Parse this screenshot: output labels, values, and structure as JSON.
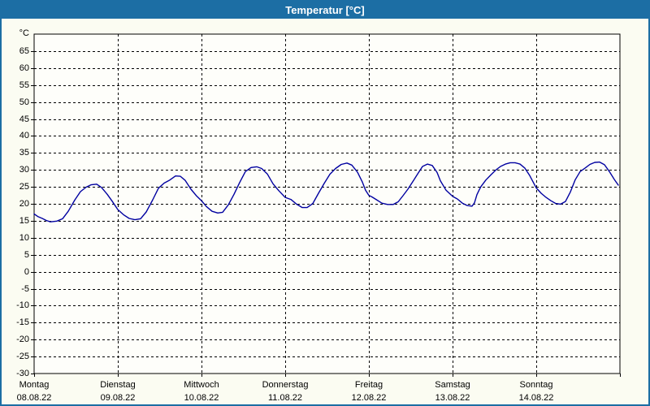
{
  "window": {
    "title": "Temperatur [°C]"
  },
  "colors": {
    "frame": "#1C6EA4",
    "titlebar_bg": "#1C6EA4",
    "titlebar_fg": "#FFFFFF",
    "page_bg": "#FBFCF2",
    "plot_bg": "#FEFEFA",
    "axis": "#000000",
    "grid": "#000000",
    "line": "#0000A0"
  },
  "chart_data": {
    "type": "line",
    "title": "Temperatur [°C]",
    "unit_label": "°C",
    "grid": "dashed",
    "legend": "none",
    "y_axis": {
      "min": -30,
      "max": 70,
      "tick_step": 5,
      "tick_labels": [
        65,
        60,
        55,
        50,
        45,
        40,
        35,
        30,
        25,
        20,
        15,
        10,
        5,
        0,
        -5,
        -10,
        -15,
        -20,
        -25,
        -30
      ]
    },
    "x_axis": {
      "days": [
        {
          "name": "Montag",
          "date": "08.08.22"
        },
        {
          "name": "Dienstag",
          "date": "09.08.22"
        },
        {
          "name": "Mittwoch",
          "date": "10.08.22"
        },
        {
          "name": "Donnerstag",
          "date": "11.08.22"
        },
        {
          "name": "Freitag",
          "date": "12.08.22"
        },
        {
          "name": "Samstag",
          "date": "13.08.22"
        },
        {
          "name": "Sonntag",
          "date": "14.08.22"
        }
      ]
    },
    "series": [
      {
        "name": "Temperatur",
        "color": "#0000A0",
        "points": [
          [
            0.0,
            17.0
          ],
          [
            0.049,
            16.2
          ],
          [
            0.097,
            15.7
          ],
          [
            0.146,
            15.1
          ],
          [
            0.194,
            14.7
          ],
          [
            0.272,
            14.9
          ],
          [
            0.34,
            15.6
          ],
          [
            0.408,
            17.8
          ],
          [
            0.485,
            21.1
          ],
          [
            0.553,
            23.6
          ],
          [
            0.621,
            24.9
          ],
          [
            0.68,
            25.6
          ],
          [
            0.748,
            25.8
          ],
          [
            0.806,
            24.8
          ],
          [
            0.874,
            22.8
          ],
          [
            0.932,
            20.8
          ],
          [
            1.0,
            18.3
          ],
          [
            1.068,
            16.8
          ],
          [
            1.136,
            15.7
          ],
          [
            1.204,
            15.3
          ],
          [
            1.272,
            15.6
          ],
          [
            1.34,
            17.6
          ],
          [
            1.417,
            21.2
          ],
          [
            1.485,
            24.6
          ],
          [
            1.553,
            26.1
          ],
          [
            1.621,
            27.0
          ],
          [
            1.689,
            28.2
          ],
          [
            1.748,
            28.1
          ],
          [
            1.806,
            26.9
          ],
          [
            1.874,
            24.3
          ],
          [
            1.942,
            22.3
          ],
          [
            2.0,
            20.9
          ],
          [
            2.058,
            19.2
          ],
          [
            2.126,
            17.8
          ],
          [
            2.194,
            17.3
          ],
          [
            2.252,
            17.5
          ],
          [
            2.32,
            19.7
          ],
          [
            2.388,
            22.8
          ],
          [
            2.456,
            26.3
          ],
          [
            2.524,
            29.5
          ],
          [
            2.592,
            30.7
          ],
          [
            2.66,
            30.9
          ],
          [
            2.718,
            30.4
          ],
          [
            2.786,
            28.8
          ],
          [
            2.854,
            25.9
          ],
          [
            2.922,
            23.9
          ],
          [
            3.0,
            21.9
          ],
          [
            3.068,
            21.3
          ],
          [
            3.136,
            19.9
          ],
          [
            3.204,
            18.9
          ],
          [
            3.262,
            18.9
          ],
          [
            3.33,
            20.1
          ],
          [
            3.398,
            23.1
          ],
          [
            3.466,
            26.0
          ],
          [
            3.534,
            28.7
          ],
          [
            3.602,
            30.4
          ],
          [
            3.67,
            31.6
          ],
          [
            3.738,
            32.0
          ],
          [
            3.796,
            31.4
          ],
          [
            3.864,
            29.3
          ],
          [
            3.92,
            26.5
          ],
          [
            3.96,
            24.0
          ],
          [
            4.0,
            22.5
          ],
          [
            4.039,
            22.0
          ],
          [
            4.097,
            21.1
          ],
          [
            4.155,
            20.2
          ],
          [
            4.223,
            19.8
          ],
          [
            4.291,
            19.8
          ],
          [
            4.35,
            20.6
          ],
          [
            4.408,
            22.4
          ],
          [
            4.466,
            24.3
          ],
          [
            4.524,
            26.5
          ],
          [
            4.583,
            28.8
          ],
          [
            4.641,
            31.0
          ],
          [
            4.699,
            31.7
          ],
          [
            4.757,
            31.3
          ],
          [
            4.816,
            29.2
          ],
          [
            4.854,
            26.8
          ],
          [
            4.922,
            24.0
          ],
          [
            5.0,
            22.2
          ],
          [
            5.058,
            21.4
          ],
          [
            5.117,
            20.2
          ],
          [
            5.175,
            19.5
          ],
          [
            5.233,
            19.3
          ],
          [
            5.262,
            20.3
          ],
          [
            5.291,
            22.7
          ],
          [
            5.32,
            24.2
          ],
          [
            5.34,
            25.1
          ],
          [
            5.398,
            27.0
          ],
          [
            5.456,
            28.5
          ],
          [
            5.515,
            29.9
          ],
          [
            5.573,
            31.0
          ],
          [
            5.631,
            31.7
          ],
          [
            5.689,
            32.1
          ],
          [
            5.748,
            32.1
          ],
          [
            5.806,
            31.7
          ],
          [
            5.864,
            30.5
          ],
          [
            5.922,
            28.3
          ],
          [
            6.0,
            24.7
          ],
          [
            6.058,
            23.1
          ],
          [
            6.117,
            21.9
          ],
          [
            6.175,
            20.9
          ],
          [
            6.233,
            20.1
          ],
          [
            6.291,
            19.9
          ],
          [
            6.35,
            20.7
          ],
          [
            6.408,
            23.5
          ],
          [
            6.466,
            27.1
          ],
          [
            6.524,
            29.5
          ],
          [
            6.583,
            30.5
          ],
          [
            6.641,
            31.6
          ],
          [
            6.699,
            32.2
          ],
          [
            6.757,
            32.3
          ],
          [
            6.816,
            31.5
          ],
          [
            6.874,
            29.5
          ],
          [
            6.932,
            27.2
          ],
          [
            6.981,
            25.5
          ]
        ]
      }
    ]
  }
}
